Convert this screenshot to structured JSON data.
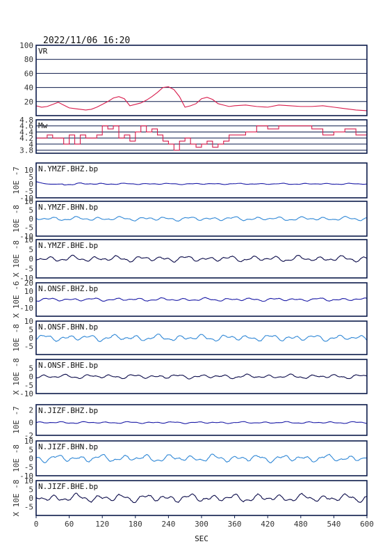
{
  "header": {
    "timestamp": "2022/11/06 16:20"
  },
  "chart_data": {
    "type": "line",
    "xlabel": "SEC",
    "xlim": [
      0,
      600
    ],
    "xticks": [
      0,
      60,
      120,
      180,
      240,
      300,
      360,
      420,
      480,
      540,
      600
    ],
    "colors": {
      "frame": "#0b1a4a",
      "vr": "#d81b4c",
      "mw": "#d81b4c",
      "bhz": "#1a1aa6",
      "bhn": "#2f87d6",
      "bhe": "#0b0b4a"
    },
    "panels": [
      {
        "name": "VR",
        "ylim": [
          0,
          100
        ],
        "yticks": [
          20,
          40,
          60,
          80,
          100
        ],
        "grid": true,
        "series": {
          "x": [
            0,
            10,
            20,
            30,
            40,
            50,
            60,
            70,
            80,
            90,
            100,
            110,
            120,
            130,
            140,
            150,
            160,
            170,
            180,
            190,
            200,
            210,
            220,
            230,
            240,
            250,
            260,
            270,
            280,
            290,
            300,
            310,
            320,
            330,
            340,
            350,
            360,
            380,
            400,
            420,
            440,
            460,
            480,
            500,
            520,
            540,
            560,
            580,
            600
          ],
          "y": [
            14,
            12,
            13,
            16,
            19,
            15,
            11,
            10,
            9,
            8,
            9,
            12,
            16,
            20,
            25,
            27,
            24,
            14,
            16,
            18,
            22,
            27,
            33,
            40,
            41,
            37,
            27,
            12,
            14,
            17,
            24,
            26,
            23,
            17,
            15,
            13,
            14,
            15,
            13,
            12,
            15,
            14,
            13,
            13,
            14,
            12,
            10,
            8,
            7
          ]
        }
      },
      {
        "name": "Mw",
        "ylim": [
          3.7,
          4.8
        ],
        "yticks": [
          3.8,
          4.0,
          4.2,
          4.4,
          4.6,
          4.8
        ],
        "grid": true,
        "series": {
          "x": [
            0,
            10,
            20,
            30,
            40,
            50,
            60,
            70,
            80,
            90,
            100,
            110,
            120,
            130,
            140,
            150,
            160,
            170,
            180,
            190,
            200,
            210,
            220,
            230,
            240,
            250,
            260,
            270,
            280,
            290,
            300,
            310,
            320,
            330,
            340,
            350,
            360,
            380,
            400,
            420,
            440,
            460,
            480,
            500,
            520,
            540,
            560,
            580,
            600
          ],
          "y": [
            4.2,
            4.2,
            4.3,
            4.2,
            4.2,
            4.0,
            4.3,
            4.0,
            4.3,
            4.2,
            4.2,
            4.3,
            4.6,
            4.5,
            4.6,
            4.2,
            4.3,
            4.1,
            4.4,
            4.6,
            4.4,
            4.5,
            4.3,
            4.1,
            4.0,
            3.8,
            4.1,
            4.2,
            4.0,
            3.9,
            4.0,
            4.1,
            3.9,
            4.0,
            4.1,
            4.3,
            4.3,
            4.4,
            4.6,
            4.5,
            4.6,
            4.6,
            4.6,
            4.5,
            4.3,
            4.4,
            4.5,
            4.3,
            4.4
          ]
        }
      },
      {
        "name": "N.YMZF.BHZ.bp",
        "unit": "10E -7",
        "ylim": [
          -10,
          15
        ],
        "yticks": [
          -10,
          -5,
          0,
          5,
          10
        ],
        "component": "bhz",
        "amp": 1.5,
        "seed": 3,
        "decay": true
      },
      {
        "name": "N.YMZF.BHN.bp",
        "unit": "10E -8",
        "ylim": [
          -10,
          10
        ],
        "yticks": [
          -10,
          -5,
          0,
          5,
          10
        ],
        "component": "bhn",
        "amp": 1.2,
        "seed": 7
      },
      {
        "name": "N.YMZF.BHE.bp",
        "unit": "X 10E -8",
        "ylim": [
          -10,
          10
        ],
        "yticks": [
          -10,
          -5,
          0,
          5,
          10
        ],
        "component": "bhe",
        "amp": 1.6,
        "seed": 11
      },
      {
        "name": "N.ONSF.BHZ.bp",
        "unit": "X 10E -6",
        "ylim": [
          -20,
          20
        ],
        "yticks": [
          -10,
          0,
          10,
          20
        ],
        "component": "bhz",
        "amp": 2.0,
        "seed": 13
      },
      {
        "name": "N.ONSF.BHN.bp",
        "unit": "10E -8",
        "ylim": [
          -10,
          10
        ],
        "yticks": [
          -5,
          0,
          5,
          10
        ],
        "component": "bhn",
        "amp": 2.0,
        "seed": 17
      },
      {
        "name": "N.ONSF.BHE.bp",
        "unit": "X 10E -8",
        "ylim": [
          -10,
          10
        ],
        "yticks": [
          -10,
          -5,
          0,
          5
        ],
        "component": "bhe",
        "amp": 1.3,
        "seed": 19
      },
      {
        "name": "N.JIZF.BHZ.bp",
        "unit": "10E -7",
        "ylim": [
          -2,
          2.8
        ],
        "yticks": [
          -2,
          0,
          2
        ],
        "component": "bhz",
        "amp": 0.15,
        "seed": 23
      },
      {
        "name": "N.JIZF.BHN.bp",
        "unit": "10E -8",
        "ylim": [
          -10,
          10
        ],
        "yticks": [
          -10,
          -5,
          0,
          5,
          10
        ],
        "component": "bhn",
        "amp": 2.2,
        "seed": 29
      },
      {
        "name": "N.JIZF.BHE.bp",
        "unit": "X 10E -8",
        "ylim": [
          -10,
          10
        ],
        "yticks": [
          -5,
          0,
          5,
          10
        ],
        "component": "bhe",
        "amp": 2.4,
        "seed": 31
      }
    ]
  }
}
